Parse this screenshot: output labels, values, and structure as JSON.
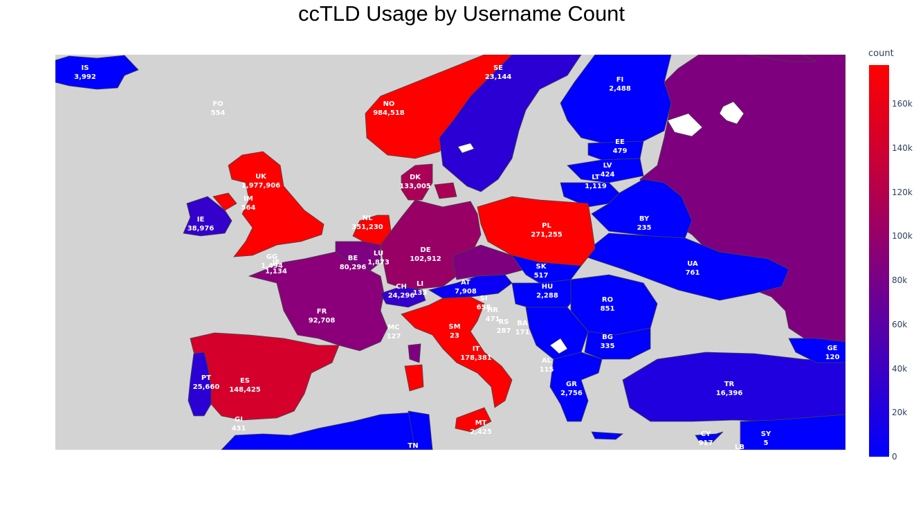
{
  "title": "ccTLD Usage by Username Count",
  "colorbar": {
    "title": "count",
    "ticks": [
      "160k",
      "140k",
      "120k",
      "100k",
      "80k",
      "60k",
      "40k",
      "20k",
      "0"
    ],
    "scale": [
      "#0000ff",
      "#ff0000"
    ],
    "max": 177000
  },
  "colors": {
    "land_no_data": "#d3d3d3",
    "background": "#ffffff",
    "border": "#444444"
  },
  "countries": [
    {
      "code": "IS",
      "count": "3,992"
    },
    {
      "code": "FO",
      "count": "554"
    },
    {
      "code": "NO",
      "count": "984,518"
    },
    {
      "code": "SE",
      "count": "23,144"
    },
    {
      "code": "FI",
      "count": "2,488"
    },
    {
      "code": "EE",
      "count": "479"
    },
    {
      "code": "LV",
      "count": "424"
    },
    {
      "code": "LT",
      "count": "1,119"
    },
    {
      "code": "DK",
      "count": "133,005"
    },
    {
      "code": "UK",
      "count": "1,977,906"
    },
    {
      "code": "IM",
      "count": "564"
    },
    {
      "code": "IE",
      "count": "38,976"
    },
    {
      "code": "NL",
      "count": "351,230"
    },
    {
      "code": "PL",
      "count": "271,255"
    },
    {
      "code": "BY",
      "count": "235"
    },
    {
      "code": "GG",
      "count": "1,494"
    },
    {
      "code": "JE",
      "count": "1,134"
    },
    {
      "code": "BE",
      "count": "80,296"
    },
    {
      "code": "LU",
      "count": "1,873"
    },
    {
      "code": "DE",
      "count": "102,912"
    },
    {
      "code": "UA",
      "count": "761"
    },
    {
      "code": "SK",
      "count": "517"
    },
    {
      "code": "CH",
      "count": "24,296"
    },
    {
      "code": "LI",
      "count": "133"
    },
    {
      "code": "AT",
      "count": "7,908"
    },
    {
      "code": "HU",
      "count": "2,288"
    },
    {
      "code": "SI",
      "count": "658"
    },
    {
      "code": "HR",
      "count": "471"
    },
    {
      "code": "RO",
      "count": "851"
    },
    {
      "code": "FR",
      "count": "92,708"
    },
    {
      "code": "RS",
      "count": "287"
    },
    {
      "code": "BA",
      "count": "171"
    },
    {
      "code": "MC",
      "count": "127"
    },
    {
      "code": "SM",
      "count": "23"
    },
    {
      "code": "BG",
      "count": "335"
    },
    {
      "code": "GE",
      "count": "120"
    },
    {
      "code": "IT",
      "count": "178,381"
    },
    {
      "code": "AL",
      "count": "115"
    },
    {
      "code": "PT",
      "count": "25,660"
    },
    {
      "code": "ES",
      "count": "148,425"
    },
    {
      "code": "GR",
      "count": "2,756"
    },
    {
      "code": "TR",
      "count": "16,396"
    },
    {
      "code": "GI",
      "count": "431"
    },
    {
      "code": "MT",
      "count": "2,425"
    },
    {
      "code": "CY",
      "count": "917"
    },
    {
      "code": "SY",
      "count": "5"
    },
    {
      "code": "TN",
      "count": ""
    },
    {
      "code": "LB",
      "count": ""
    }
  ]
}
